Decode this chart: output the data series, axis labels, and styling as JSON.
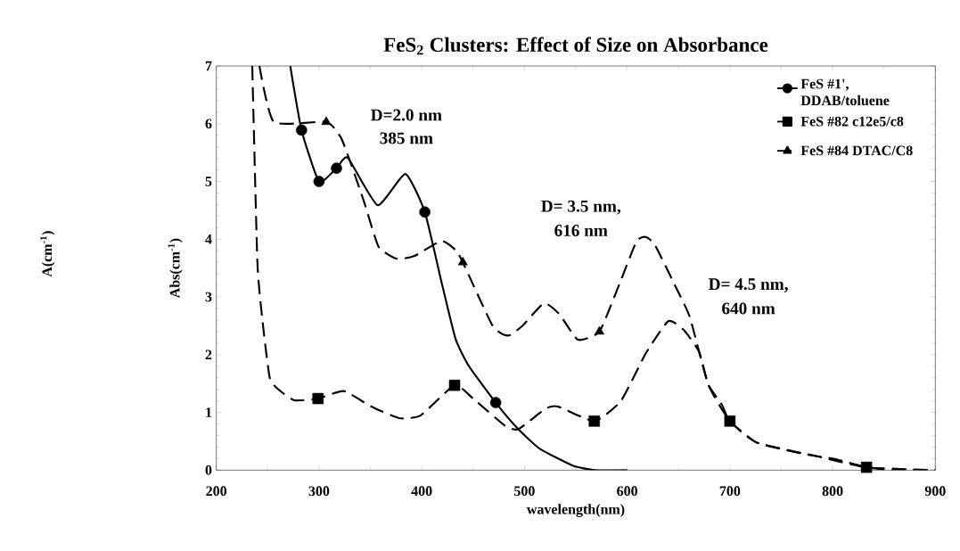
{
  "chart_data": {
    "type": "line",
    "title": "FeS$_{2}$ Clusters:  Effect of Size on Absorbance",
    "xlabel": "wavelength(nm)",
    "ylabel": "Abs(cm$^{-1}$)",
    "xlim": [
      200,
      900
    ],
    "ylim": [
      0,
      7
    ],
    "xticks": [
      200,
      300,
      400,
      500,
      600,
      700,
      800,
      900
    ],
    "yticks": [
      0,
      1,
      2,
      3,
      4,
      5,
      6,
      7
    ],
    "grid": false,
    "legend": "top right",
    "annotations": [
      "D=2.0  nm",
      "385  nm",
      "D=  3.5  nm,",
      "616  nm",
      "D=  4.5  nm,",
      "640  nm",
      "A(cm$^{-1}$)"
    ],
    "series": [
      {
        "name": "FeS  #1', DDAB/toluene",
        "color": "#000000",
        "line_style": "solid",
        "x": [
          272,
          283,
          300,
          317,
          328,
          357,
          384,
          403,
          420,
          433,
          446,
          472,
          494,
          515,
          547,
          569,
          600
        ],
        "values": [
          7,
          5.89,
          5.0,
          5.23,
          5.41,
          4.59,
          5.13,
          4.47,
          3.2,
          2.27,
          1.8,
          1.17,
          0.71,
          0.37,
          0.08,
          0,
          0
        ]
      },
      {
        "type": "scatter",
        "marker": "circle",
        "color": "#000000",
        "x": [
          283,
          300,
          317,
          403,
          472
        ],
        "values": [
          5.89,
          5.0,
          5.23,
          4.47,
          1.17
        ]
      },
      {
        "name": "FeS  #82 c12e5/c8",
        "color": "#000000",
        "line_style": "dashed",
        "x": [
          235,
          240,
          245,
          252,
          261,
          276,
          299,
          324,
          350,
          378,
          399,
          432,
          450,
          481,
          494,
          521,
          533,
          568,
          594,
          618,
          640,
          655,
          670,
          679,
          692,
          700,
          726,
          764,
          785,
          803,
          833,
          856,
          900
        ],
        "values": [
          7,
          3.6,
          2.58,
          1.6,
          1.39,
          1.21,
          1.24,
          1.37,
          1.11,
          0.9,
          0.95,
          1.47,
          1.24,
          0.77,
          0.71,
          1.07,
          1.1,
          0.85,
          1.2,
          2.02,
          2.58,
          2.43,
          2.05,
          1.48,
          1.14,
          0.85,
          0.48,
          0.31,
          0.24,
          0.19,
          0.05,
          0,
          0
        ]
      },
      {
        "type": "scatter",
        "marker": "square",
        "color": "#000000",
        "x": [
          299,
          432,
          568,
          700,
          833
        ],
        "values": [
          1.24,
          1.47,
          0.85,
          0.85,
          0.05
        ]
      },
      {
        "name": "FeS  #84 DTAC/C8",
        "color": "#000000",
        "line_style": "dashed",
        "x": [
          242,
          256,
          307,
          321,
          330,
          344,
          358,
          376,
          393,
          419,
          433,
          440,
          469,
          484,
          498,
          519,
          534,
          552,
          573,
          593,
          609,
          618,
          627,
          646,
          661,
          679,
          700,
          726,
          785,
          833,
          900
        ],
        "values": [
          7,
          6.03,
          6.03,
          5.77,
          5.36,
          4.64,
          3.87,
          3.66,
          3.71,
          3.97,
          3.81,
          3.6,
          2.5,
          2.33,
          2.5,
          2.89,
          2.7,
          2.26,
          2.4,
          3.25,
          3.96,
          4.04,
          3.9,
          3.22,
          2.65,
          1.48,
          0.85,
          0.48,
          0.24,
          0.05,
          0
        ]
      },
      {
        "type": "scatter",
        "marker": "triangle",
        "color": "#000000",
        "x": [
          307,
          440,
          573
        ],
        "values": [
          6.03,
          3.6,
          2.4
        ]
      }
    ]
  }
}
